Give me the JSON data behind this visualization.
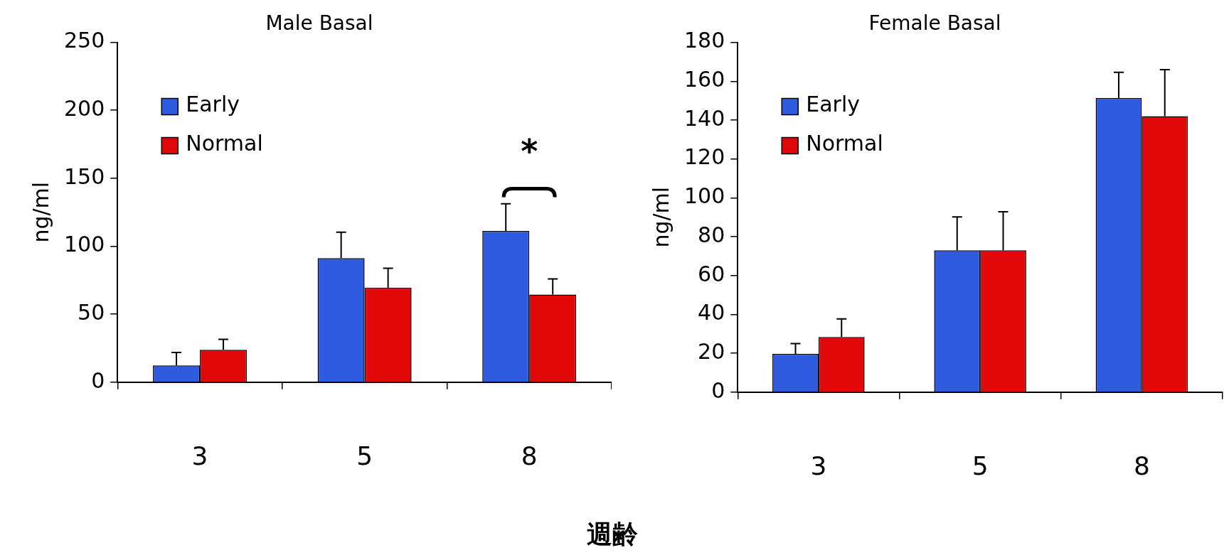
{
  "chart_data": [
    {
      "type": "bar",
      "title": "Male Basal",
      "xlabel": "週齢",
      "ylabel": "ng/ml",
      "categories": [
        "3",
        "5",
        "8"
      ],
      "series": [
        {
          "name": "Early",
          "color": "#2f5be0",
          "values": [
            12.3,
            91.3,
            111.3
          ],
          "errors": [
            [
              12.3,
              21.8
            ],
            [
              91.3,
              110.3
            ],
            [
              111.3,
              131.3
            ]
          ]
        },
        {
          "name": "Normal",
          "color": "#e00808",
          "values": [
            23.8,
            69.5,
            64.5
          ],
          "errors": [
            [
              23.8,
              31.5
            ],
            [
              69.5,
              83.8
            ],
            [
              64.5,
              76
            ]
          ]
        }
      ],
      "ylim": [
        0,
        250
      ],
      "yticks": [
        0,
        50,
        100,
        150,
        200,
        250
      ],
      "grid": false,
      "legend": "top left",
      "annotations": [
        "*"
      ]
    },
    {
      "type": "bar",
      "title": "Female Basal",
      "ylabel": "ng/ml",
      "categories": [
        "3",
        "5",
        "8"
      ],
      "series": [
        {
          "name": "Early",
          "color": "#2f5be0",
          "values": [
            19.7,
            73,
            151.3
          ],
          "errors": [
            [
              19.7,
              25
            ],
            [
              73,
              90.2
            ],
            [
              151.3,
              164.6
            ]
          ]
        },
        {
          "name": "Normal",
          "color": "#e00808",
          "values": [
            28.4,
            73,
            142
          ],
          "errors": [
            [
              28.4,
              37.7
            ],
            [
              73,
              92.8
            ],
            [
              142,
              166
            ]
          ]
        }
      ],
      "ylim": [
        0,
        180
      ],
      "yticks": [
        0,
        20,
        40,
        60,
        80,
        100,
        120,
        140,
        160,
        180
      ],
      "grid": false,
      "legend": "top left"
    }
  ]
}
